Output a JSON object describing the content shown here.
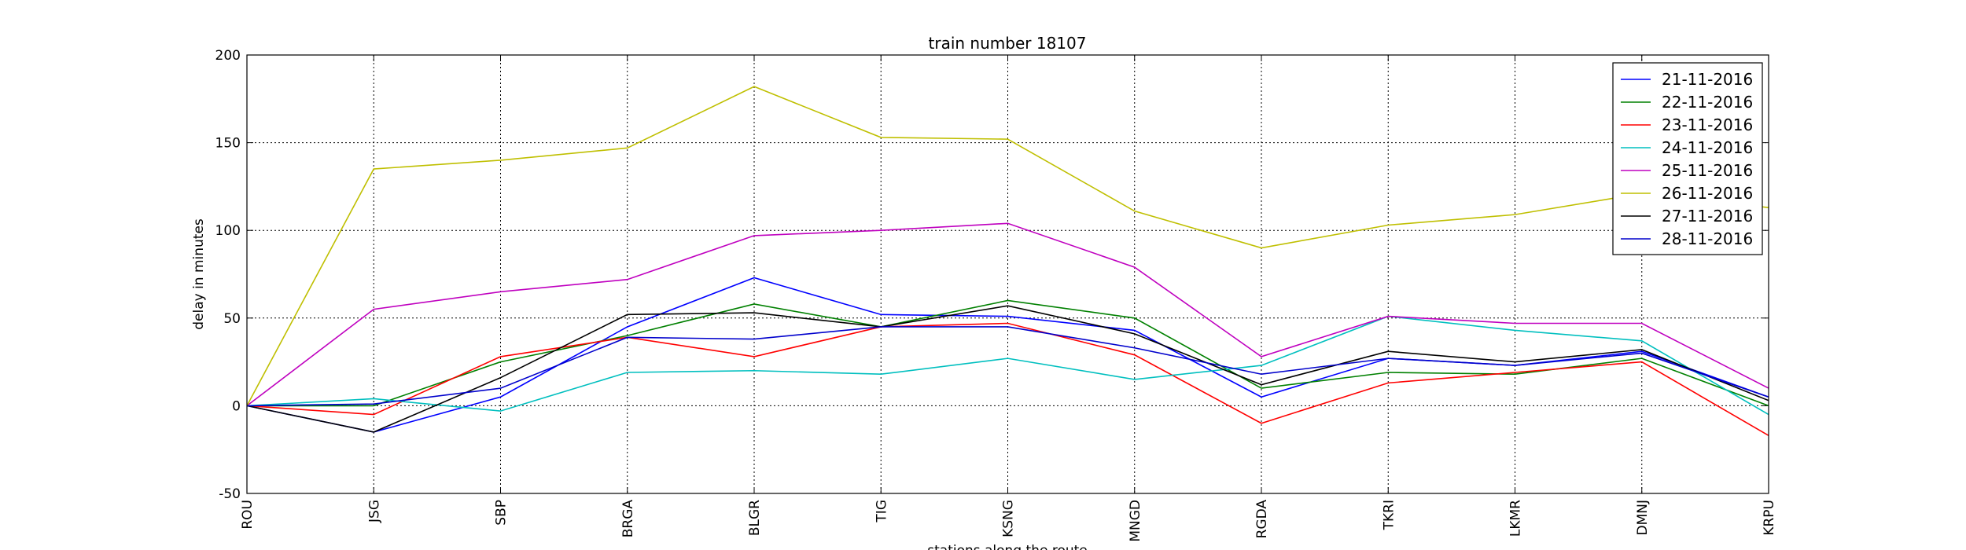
{
  "chart_data": {
    "type": "line",
    "title": "train number 18107",
    "x_label": "stations along the route",
    "y_label": "delay in minutes",
    "categories": [
      "ROU",
      "JSG",
      "SBP",
      "BRGA",
      "BLGR",
      "TIG",
      "KSNG",
      "MNGD",
      "RGDA",
      "TKRI",
      "LKMR",
      "DMNJ",
      "KRPU"
    ],
    "series": [
      {
        "name": "21-11-2016",
        "color": "#0000ff",
        "values": [
          0,
          -15,
          5,
          45,
          73,
          52,
          51,
          43,
          5,
          27,
          23,
          31,
          5
        ]
      },
      {
        "name": "22-11-2016",
        "color": "#008000",
        "values": [
          0,
          0,
          25,
          40,
          58,
          45,
          60,
          50,
          10,
          19,
          18,
          27,
          0
        ]
      },
      {
        "name": "23-11-2016",
        "color": "#ff0000",
        "values": [
          0,
          -5,
          28,
          39,
          28,
          45,
          47,
          29,
          -10,
          13,
          19,
          25,
          -17
        ]
      },
      {
        "name": "24-11-2016",
        "color": "#00bfbf",
        "values": [
          0,
          4,
          -3,
          19,
          20,
          18,
          27,
          15,
          23,
          51,
          43,
          37,
          -5
        ]
      },
      {
        "name": "25-11-2016",
        "color": "#bf00bf",
        "values": [
          0,
          55,
          65,
          72,
          97,
          100,
          104,
          79,
          28,
          51,
          47,
          47,
          10
        ]
      },
      {
        "name": "26-11-2016",
        "color": "#bfbf00",
        "values": [
          0,
          135,
          140,
          147,
          182,
          153,
          152,
          111,
          90,
          103,
          109,
          121,
          113
        ]
      },
      {
        "name": "27-11-2016",
        "color": "#000000",
        "values": [
          0,
          -15,
          16,
          52,
          53,
          45,
          57,
          41,
          12,
          31,
          25,
          32,
          3
        ]
      },
      {
        "name": "28-11-2016",
        "color": "#0000cc",
        "values": [
          0,
          1,
          10,
          39,
          38,
          45,
          45,
          33,
          18,
          27,
          23,
          30,
          5
        ]
      }
    ],
    "ylim": [
      -50,
      200
    ],
    "yticks": [
      -50,
      0,
      50,
      100,
      150,
      200
    ],
    "grid": true,
    "legend": "upper right"
  }
}
